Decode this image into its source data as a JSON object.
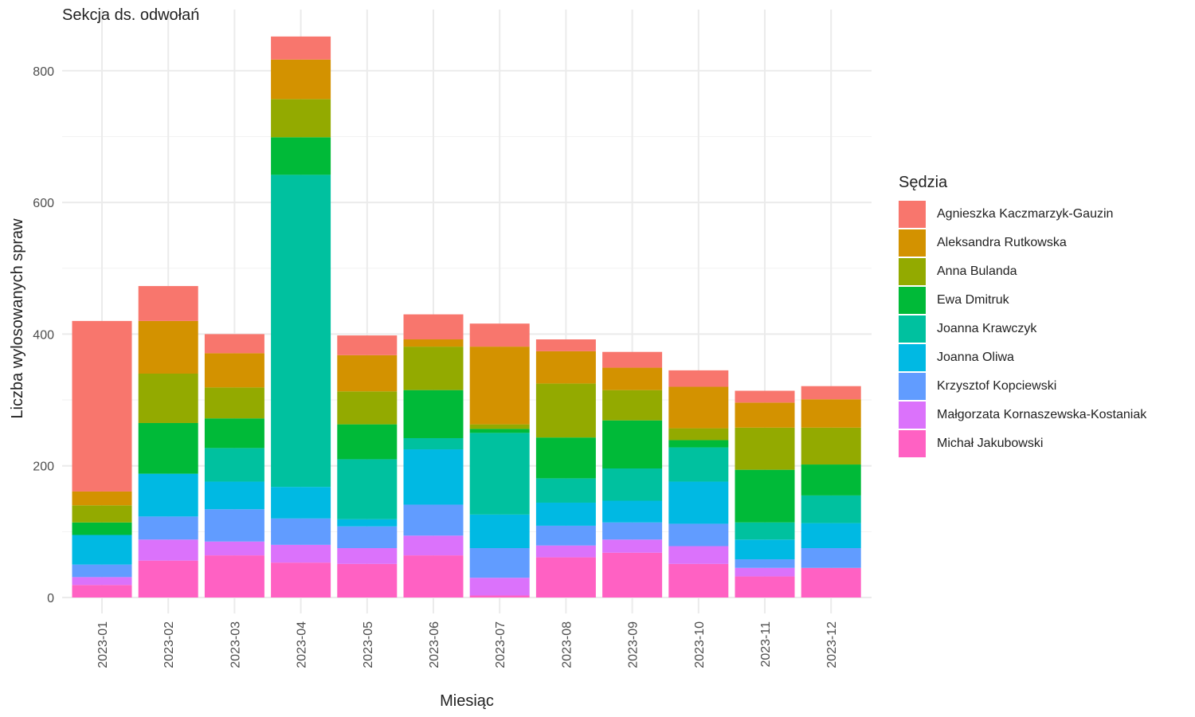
{
  "chart_data": {
    "type": "bar",
    "stacked": true,
    "title": "Sekcja ds. odwołań",
    "xlabel": "Miesiąc",
    "ylabel": "Liczba wylosowanych spraw",
    "ylim": [
      0,
      860
    ],
    "yticks": [
      0,
      200,
      400,
      600,
      800
    ],
    "grid": true,
    "legend_title": "Sędzia",
    "legend_position": "right",
    "categories": [
      "2023-01",
      "2023-02",
      "2023-03",
      "2023-04",
      "2023-05",
      "2023-06",
      "2023-07",
      "2023-08",
      "2023-09",
      "2023-10",
      "2023-11",
      "2023-12"
    ],
    "series": [
      {
        "name": "Michał Jakubowski",
        "color": "#FF61C3",
        "values": [
          19,
          56,
          64,
          53,
          51,
          64,
          3,
          61,
          68,
          51,
          32,
          45
        ]
      },
      {
        "name": "Małgorzata Kornaszewska-Kostaniak",
        "color": "#DB72FB",
        "values": [
          12,
          32,
          21,
          27,
          24,
          30,
          27,
          18,
          20,
          27,
          13,
          0
        ]
      },
      {
        "name": "Krzysztof Kopciewski",
        "color": "#619CFF",
        "values": [
          19,
          35,
          49,
          40,
          33,
          47,
          45,
          30,
          26,
          34,
          13,
          30
        ]
      },
      {
        "name": "Joanna Oliwa",
        "color": "#00B9E3",
        "values": [
          45,
          65,
          42,
          48,
          11,
          84,
          51,
          35,
          33,
          64,
          30,
          38
        ]
      },
      {
        "name": "Joanna Krawczyk",
        "color": "#00C19F",
        "values": [
          0,
          0,
          51,
          474,
          91,
          17,
          124,
          37,
          49,
          52,
          26,
          42
        ]
      },
      {
        "name": "Ewa Dmitruk",
        "color": "#00BA38",
        "values": [
          19,
          77,
          45,
          57,
          53,
          73,
          6,
          62,
          73,
          11,
          80,
          47
        ]
      },
      {
        "name": "Anna Bulanda",
        "color": "#93AA00",
        "values": [
          26,
          75,
          47,
          58,
          50,
          66,
          7,
          82,
          46,
          18,
          64,
          56
        ]
      },
      {
        "name": "Aleksandra Rutkowska",
        "color": "#D39200",
        "values": [
          21,
          80,
          52,
          60,
          55,
          11,
          118,
          49,
          34,
          63,
          38,
          43
        ]
      },
      {
        "name": "Agnieszka Kaczmarzyk-Gauzin",
        "color": "#F8766D",
        "values": [
          259,
          53,
          29,
          35,
          30,
          38,
          35,
          18,
          24,
          25,
          18,
          20
        ]
      }
    ]
  }
}
